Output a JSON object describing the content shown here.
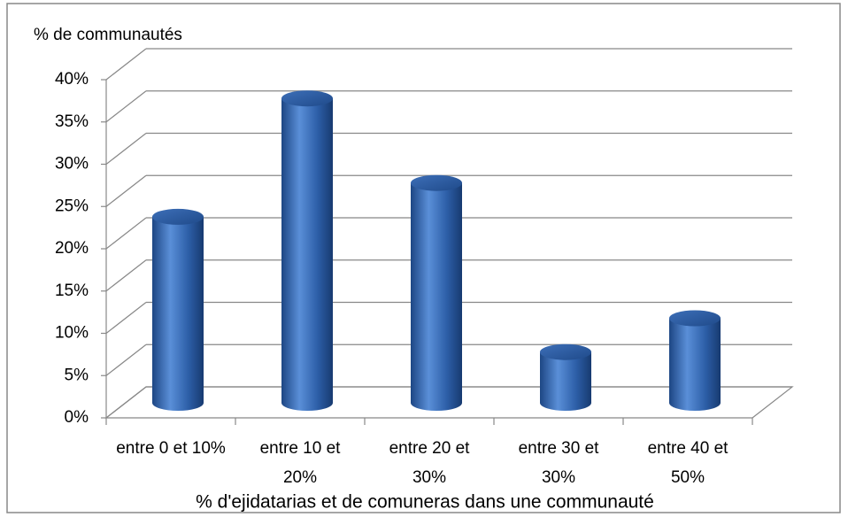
{
  "chart_data": {
    "type": "bar3d",
    "title": "% de communautés",
    "x_label": "% d'ejidatarias et de comuneras dans une communauté",
    "categories": [
      "entre 0 et 10%",
      "entre 10 et 20%",
      "entre 20 et 30%",
      "entre 30 et 30%",
      "entre 40 et 50%"
    ],
    "values": [
      22,
      36,
      26,
      6,
      10
    ],
    "color": "#2e62b0",
    "ylim": [
      0,
      40
    ],
    "yticks": [
      {
        "value": 0,
        "label": "0%"
      },
      {
        "value": 5,
        "label": "5%"
      },
      {
        "value": 10,
        "label": "10%"
      },
      {
        "value": 15,
        "label": "15%"
      },
      {
        "value": 20,
        "label": "20%"
      },
      {
        "value": 25,
        "label": "25%"
      },
      {
        "value": 30,
        "label": "30%"
      },
      {
        "value": 35,
        "label": "35%"
      },
      {
        "value": 40,
        "label": "40%"
      }
    ],
    "grid": true
  }
}
